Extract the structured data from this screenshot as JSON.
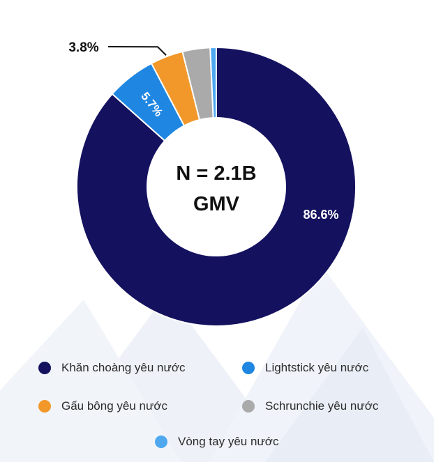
{
  "chart_data": {
    "type": "pie",
    "center_label": [
      "N = 2.1B",
      "GMV"
    ],
    "categories": [
      "Khăn choàng yêu nước",
      "Lightstick yêu nước",
      "Gấu bông yêu nước",
      "Schrunchie yêu nước",
      "Vòng tay yêu nước"
    ],
    "values": [
      86.6,
      5.7,
      3.8,
      3.2,
      0.7
    ],
    "data_labels": [
      "86.6%",
      "5.7%",
      "3.8%",
      "",
      ""
    ],
    "colors": [
      "#14115f",
      "#1f86e2",
      "#f2982a",
      "#aaaaaa",
      "#4ea8f0"
    ],
    "legend_position": "bottom"
  }
}
